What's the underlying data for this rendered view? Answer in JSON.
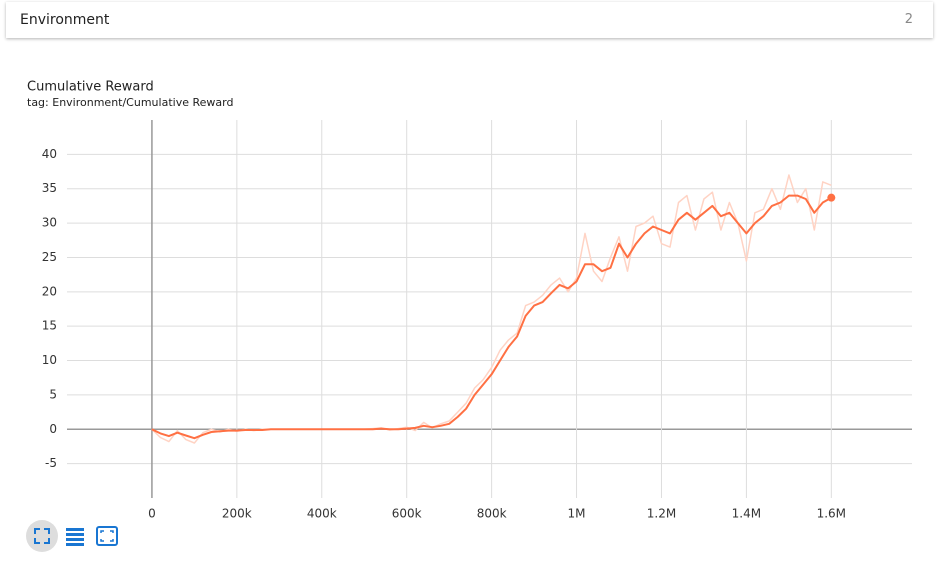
{
  "panel": {
    "title": "Environment",
    "count": 2
  },
  "chart_data": {
    "type": "line",
    "title": "Cumulative Reward",
    "subtitle": "tag: Environment/Cumulative Reward",
    "x": [
      0,
      20000,
      40000,
      60000,
      80000,
      100000,
      120000,
      140000,
      160000,
      180000,
      200000,
      220000,
      240000,
      260000,
      280000,
      300000,
      320000,
      340000,
      360000,
      380000,
      400000,
      420000,
      440000,
      460000,
      480000,
      500000,
      520000,
      540000,
      560000,
      580000,
      600000,
      620000,
      640000,
      660000,
      680000,
      700000,
      720000,
      740000,
      760000,
      780000,
      800000,
      820000,
      840000,
      860000,
      880000,
      900000,
      920000,
      940000,
      960000,
      980000,
      1000000,
      1020000,
      1040000,
      1060000,
      1080000,
      1100000,
      1120000,
      1140000,
      1160000,
      1180000,
      1200000,
      1220000,
      1240000,
      1260000,
      1280000,
      1300000,
      1320000,
      1340000,
      1360000,
      1380000,
      1400000,
      1420000,
      1440000,
      1460000,
      1480000,
      1500000,
      1520000,
      1540000,
      1560000,
      1580000,
      1600000
    ],
    "series": [
      {
        "color": "#ffd3c4",
        "values": [
          0,
          -1.2,
          -1.8,
          -0.2,
          -1.5,
          -2.0,
          -0.5,
          0,
          -0.4,
          0,
          -0.3,
          0,
          -0.2,
          0,
          0,
          0,
          0,
          0,
          0,
          0,
          0,
          0,
          0,
          0,
          0,
          0,
          0.1,
          0.2,
          -0.1,
          0.1,
          0.3,
          -0.2,
          1.0,
          0.2,
          0.8,
          1.2,
          2.5,
          3.8,
          6.0,
          7.2,
          9.0,
          11.5,
          13,
          14,
          18,
          18.5,
          19.5,
          21,
          22,
          20,
          22,
          28.5,
          23,
          21.5,
          25,
          28,
          23,
          29.5,
          30,
          31,
          27,
          26.5,
          33,
          34,
          29,
          33.5,
          34.5,
          29,
          33,
          30,
          24.5,
          31.5,
          32,
          35,
          32,
          37,
          33,
          35,
          29,
          36,
          35.5
        ]
      },
      {
        "color": "#ff7043",
        "values": [
          0,
          -0.6,
          -1.0,
          -0.5,
          -0.9,
          -1.3,
          -0.8,
          -0.4,
          -0.3,
          -0.2,
          -0.2,
          -0.1,
          -0.1,
          -0.1,
          0,
          0,
          0,
          0,
          0,
          0,
          0,
          0,
          0,
          0,
          0,
          0,
          0,
          0.1,
          0,
          0,
          0.1,
          0.2,
          0.5,
          0.3,
          0.5,
          0.8,
          1.8,
          3.0,
          5.0,
          6.5,
          8.0,
          10,
          12,
          13.5,
          16.5,
          18,
          18.5,
          19.8,
          21,
          20.5,
          21.5,
          24,
          24,
          23,
          23.5,
          27,
          25,
          27,
          28.5,
          29.5,
          29,
          28.5,
          30.5,
          31.5,
          30.5,
          31.5,
          32.5,
          31,
          31.5,
          30,
          28.5,
          30,
          31,
          32.5,
          33,
          34,
          34,
          33.5,
          31.5,
          33,
          33.7
        ]
      }
    ],
    "xlim": [
      -200000,
      1790000
    ],
    "ylim": [
      -10,
      45
    ],
    "xticks": [
      0,
      {
        "value": 200000,
        "label": "200k"
      },
      {
        "value": 400000,
        "label": "400k"
      },
      {
        "value": 600000,
        "label": "600k"
      },
      {
        "value": 800000,
        "label": "800k"
      },
      {
        "value": 1000000,
        "label": "1M"
      },
      {
        "value": 1200000,
        "label": "1.2M"
      },
      {
        "value": 1400000,
        "label": "1.4M"
      },
      {
        "value": 1600000,
        "label": "1.6M"
      }
    ],
    "yticks": [
      -5,
      0,
      5,
      10,
      15,
      20,
      25,
      30,
      35,
      40
    ],
    "grid": true
  }
}
